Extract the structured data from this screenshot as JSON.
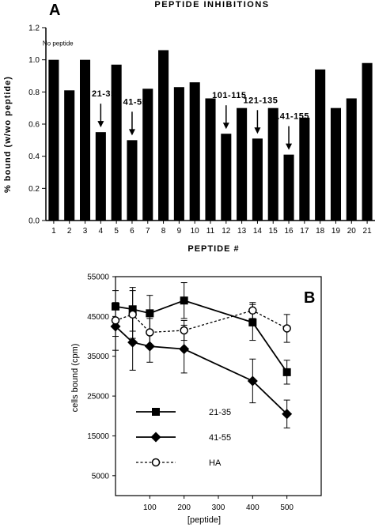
{
  "chart_data": [
    {
      "panel": "A",
      "type": "bar",
      "title": "PEPTIDE INHIBITIONS",
      "xlabel": "PEPTIDE #",
      "ylabel": "% bound (w/wo peptide)",
      "ylim": [
        0.0,
        1.2
      ],
      "yticks": [
        "0.0",
        "0.2",
        "0.4",
        "0.6",
        "0.8",
        "1.0",
        "1.2"
      ],
      "categories": [
        "1",
        "2",
        "3",
        "4",
        "5",
        "6",
        "7",
        "8",
        "9",
        "10",
        "11",
        "12",
        "13",
        "14",
        "15",
        "16",
        "17",
        "18",
        "19",
        "20",
        "21"
      ],
      "values": [
        1.0,
        0.81,
        1.0,
        0.55,
        0.97,
        0.5,
        0.82,
        1.06,
        0.83,
        0.86,
        0.76,
        0.54,
        0.7,
        0.51,
        0.7,
        0.41,
        0.64,
        0.94,
        0.7,
        0.76,
        0.98
      ],
      "grid": false,
      "annotations": [
        {
          "text": "No peptide",
          "category": "1",
          "arrow": false
        },
        {
          "text": "21-35",
          "category": "4",
          "arrow": true
        },
        {
          "text": "41-55",
          "category": "6",
          "arrow": true
        },
        {
          "text": "101-115",
          "category": "12",
          "arrow": true
        },
        {
          "text": "121-135",
          "category": "14",
          "arrow": true
        },
        {
          "text": "141-155",
          "category": "16",
          "arrow": true
        }
      ]
    },
    {
      "panel": "B",
      "type": "line",
      "xlabel": "[peptide]",
      "ylabel": "cells bound (cpm)",
      "xlim": [
        0,
        600
      ],
      "ylim": [
        0,
        55000
      ],
      "xticks": [
        "100",
        "200",
        "300",
        "400",
        "500"
      ],
      "yticks": [
        "5000",
        "15000",
        "25000",
        "35000",
        "45000",
        "55000"
      ],
      "legend_position": "bottom-left",
      "grid": false,
      "series": [
        {
          "name": "21-35",
          "marker": "filled-square",
          "dashed": false,
          "x": [
            0,
            50,
            100,
            200,
            400,
            500
          ],
          "y": [
            47500,
            46800,
            45800,
            49000,
            43500,
            31000
          ],
          "err": [
            4000,
            5500,
            4500,
            4500,
            4500,
            3000
          ]
        },
        {
          "name": "41-55",
          "marker": "filled-diamond",
          "dashed": false,
          "x": [
            0,
            50,
            100,
            200,
            400,
            500
          ],
          "y": [
            42500,
            38500,
            37500,
            36800,
            28800,
            20500
          ],
          "err": [
            6000,
            7000,
            4000,
            6000,
            5500,
            3500
          ]
        },
        {
          "name": "HA",
          "marker": "open-circle",
          "dashed": true,
          "x": [
            0,
            50,
            100,
            200,
            400,
            500
          ],
          "y": [
            44000,
            45500,
            41000,
            41500,
            46500,
            42000
          ],
          "err": [
            4000,
            6000,
            3500,
            2500,
            2000,
            3500
          ]
        }
      ]
    }
  ]
}
